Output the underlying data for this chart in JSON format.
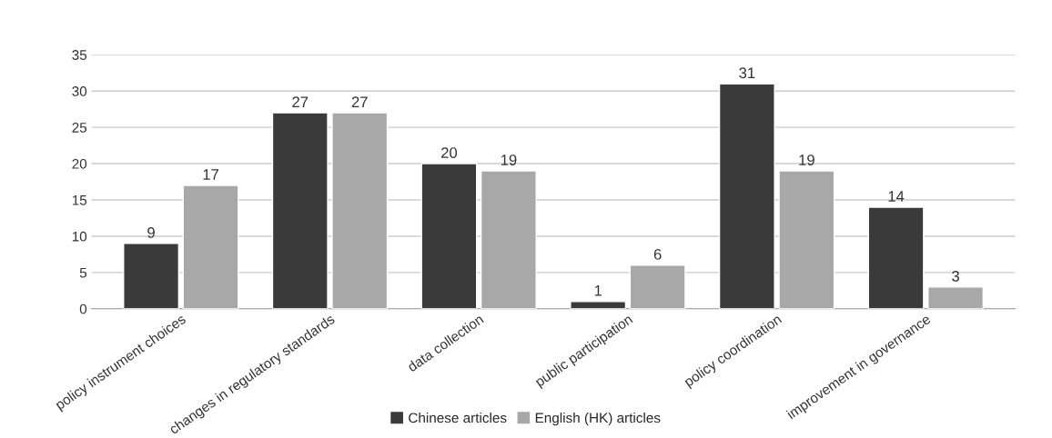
{
  "chart_data": {
    "type": "bar",
    "categories": [
      "policy instrument choices",
      "changes in regulatory standards",
      "data collection",
      "public participation",
      "policy coordination",
      "improvement in governance"
    ],
    "series": [
      {
        "name": "Chinese articles",
        "color": "#3a3a3a",
        "values": [
          9,
          27,
          20,
          1,
          31,
          14
        ]
      },
      {
        "name": "English (HK) articles",
        "color": "#a8a8a8",
        "values": [
          17,
          27,
          19,
          6,
          19,
          3
        ]
      }
    ],
    "ylim": [
      0,
      35
    ],
    "yticks": [
      0,
      5,
      10,
      15,
      20,
      25,
      30,
      35
    ],
    "grid": "y",
    "legend": "bottom",
    "data_labels": true
  }
}
